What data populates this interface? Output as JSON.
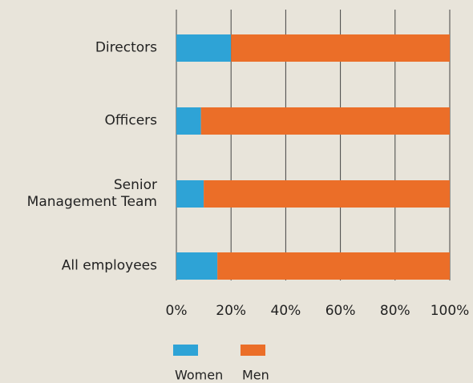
{
  "chart_data": {
    "type": "stacked-barh",
    "categories": [
      "Directors",
      "Officers",
      "Senior\nManagement Team",
      "All employees"
    ],
    "series": [
      {
        "name": "Women",
        "color": "#2ea3d6",
        "values": [
          20,
          9,
          10,
          15
        ]
      },
      {
        "name": "Men",
        "color": "#eb6e28",
        "values": [
          80,
          91,
          90,
          85
        ]
      }
    ],
    "xlim": [
      0,
      100
    ],
    "xticks": [
      {
        "value": 0,
        "label": "0%"
      },
      {
        "value": 20,
        "label": "20%"
      },
      {
        "value": 40,
        "label": "40%"
      },
      {
        "value": 60,
        "label": "60%"
      },
      {
        "value": 80,
        "label": "80%"
      },
      {
        "value": 100,
        "label": "100%"
      }
    ],
    "grid": true
  }
}
